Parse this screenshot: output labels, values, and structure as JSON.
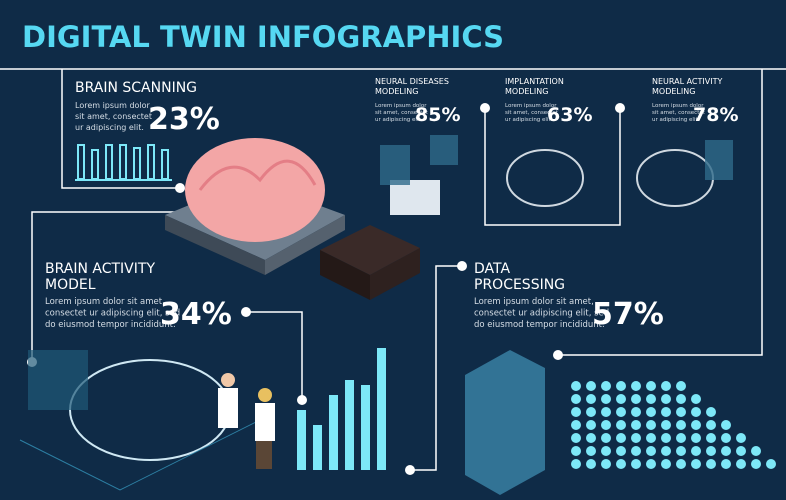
{
  "title": "DIGITAL TWIN INFOGRAPHICS",
  "sections": [
    {
      "heading": [
        "BRAIN SCANNING"
      ],
      "body": [
        "Lorem ipsum dolor",
        "sit amet, consectet",
        "ur adipiscing elit."
      ],
      "percent": "23%"
    },
    {
      "heading": [
        "NEURAL DISEASES",
        "MODELING"
      ],
      "body": [
        "Lorem ipsum dolor",
        "sit amet, consectet",
        "ur adipiscing elit."
      ],
      "percent": "85%"
    },
    {
      "heading": [
        "IMPLANTATION",
        "MODELING"
      ],
      "body": [
        "Lorem ipsum dolor",
        "sit amet, consectet",
        "ur adipiscing elit."
      ],
      "percent": "63%"
    },
    {
      "heading": [
        "NEURAL ACTIVITY",
        "MODELING"
      ],
      "body": [
        "Lorem ipsum dolor",
        "sit amet, consectet",
        "ur adipiscing elit."
      ],
      "percent": "78%"
    },
    {
      "heading": [
        "BRAIN ACTIVITY",
        "MODEL"
      ],
      "body": [
        "Lorem ipsum dolor sit amet,",
        "consectet ur adipiscing elit, sed",
        "do eiusmod tempor incididunt."
      ],
      "percent": "34%"
    },
    {
      "heading": [
        "DATA",
        "PROCESSING"
      ],
      "body": [
        "Lorem ipsum dolor sit amet,",
        "consectet ur adipiscing elit, sed",
        "do eiusmod tempor incididunt."
      ],
      "percent": "57%"
    }
  ]
}
